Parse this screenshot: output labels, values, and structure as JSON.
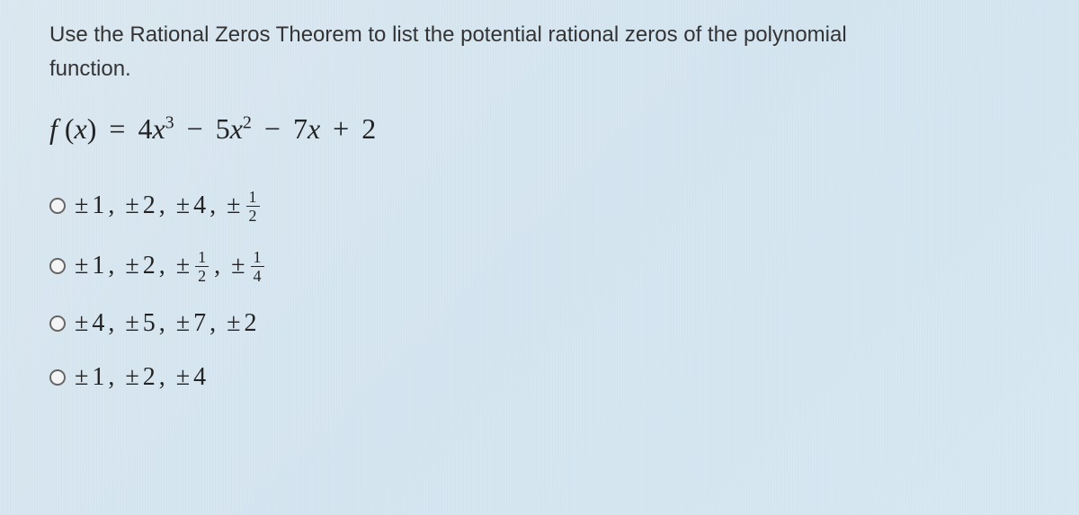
{
  "question": {
    "prompt_line1": "Use the Rational Zeros Theorem to list the potential rational zeros of the polynomial",
    "prompt_line2": "function.",
    "equation": {
      "lhs": "f (x)",
      "rhs_terms": [
        "4x³",
        "− 5x²",
        "− 7x",
        "+ 2"
      ]
    }
  },
  "options": [
    {
      "id": "opt1",
      "terms": [
        {
          "type": "int",
          "value": "1"
        },
        {
          "type": "int",
          "value": "2"
        },
        {
          "type": "int",
          "value": "4"
        },
        {
          "type": "frac",
          "num": "1",
          "den": "2"
        }
      ]
    },
    {
      "id": "opt2",
      "terms": [
        {
          "type": "int",
          "value": "1"
        },
        {
          "type": "int",
          "value": "2"
        },
        {
          "type": "frac",
          "num": "1",
          "den": "2"
        },
        {
          "type": "frac",
          "num": "1",
          "den": "4"
        }
      ]
    },
    {
      "id": "opt3",
      "terms": [
        {
          "type": "int",
          "value": "4"
        },
        {
          "type": "int",
          "value": "5"
        },
        {
          "type": "int",
          "value": "7"
        },
        {
          "type": "int",
          "value": "2"
        }
      ]
    },
    {
      "id": "opt4",
      "terms": [
        {
          "type": "int",
          "value": "1"
        },
        {
          "type": "int",
          "value": "2"
        },
        {
          "type": "int",
          "value": "4"
        }
      ]
    }
  ],
  "symbols": {
    "pm": "±",
    "comma": ","
  },
  "colors": {
    "background_start": "#dce8f0",
    "background_end": "#d8e8f2",
    "text": "#333",
    "math_text": "#222",
    "radio_border": "#666"
  },
  "fontsizes": {
    "question": 24,
    "equation": 32,
    "option": 28,
    "fraction": 18
  }
}
